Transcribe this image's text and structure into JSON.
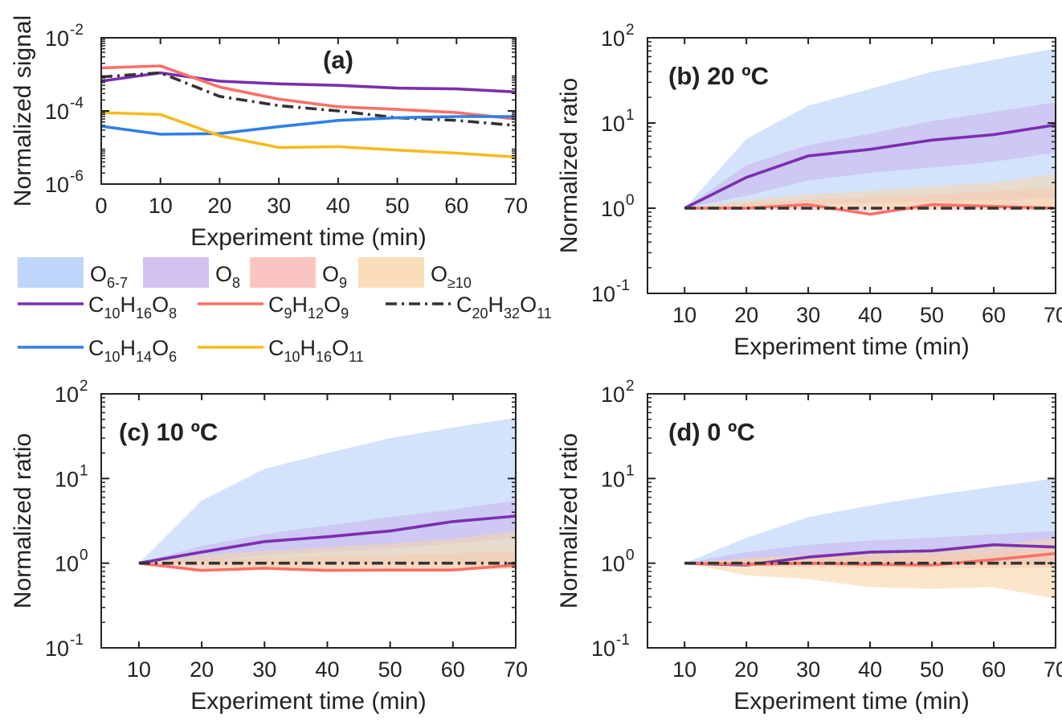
{
  "chart_data": [
    {
      "panel_id": "a",
      "type": "line",
      "title": "(a)",
      "xlabel": "Experiment time (min)",
      "ylabel": "Normalized signal",
      "xscale": "linear",
      "yscale": "log",
      "xlim": [
        0,
        70
      ],
      "ylim_exp": [
        -6,
        -2
      ],
      "xticks": [
        "0",
        "10",
        "20",
        "30",
        "40",
        "50",
        "60",
        "70"
      ],
      "yticks": [
        {
          "base": "10",
          "exp": "-6",
          "value_exp": -6
        },
        {
          "base": "10",
          "exp": "-4",
          "value_exp": -4
        },
        {
          "base": "10",
          "exp": "-2",
          "value_exp": -2
        }
      ],
      "x": [
        0,
        10,
        20,
        30,
        40,
        50,
        60,
        70
      ],
      "series": [
        {
          "name": "C10H16O8",
          "color": "#7b2fae",
          "style": "solid",
          "values": [
            0.00065,
            0.0011,
            0.00065,
            0.00055,
            0.0005,
            0.00042,
            0.0004,
            0.00033
          ]
        },
        {
          "name": "C9H12O9",
          "color": "#f87168",
          "style": "solid",
          "values": [
            0.0015,
            0.0017,
            0.00045,
            0.00021,
            0.00013,
            0.00011,
            9e-05,
            6e-05
          ]
        },
        {
          "name": "C20H32O11",
          "color": "#333333",
          "style": "dashdot",
          "values": [
            0.00085,
            0.0011,
            0.00025,
            0.00014,
            0.0001,
            6.5e-05,
            5.5e-05,
            4e-05
          ]
        },
        {
          "name": "C10H14O6",
          "color": "#2f7fe8",
          "style": "solid",
          "values": [
            3.8e-05,
            2.3e-05,
            2.4e-05,
            3.7e-05,
            5.5e-05,
            6.5e-05,
            7e-05,
            7e-05
          ]
        },
        {
          "name": "C10H16O11",
          "color": "#f6bb21",
          "style": "solid",
          "values": [
            9e-05,
            8e-05,
            2.1e-05,
            1e-05,
            1.05e-05,
            8.5e-06,
            7e-06,
            5.5e-06
          ]
        }
      ]
    },
    {
      "panel_id": "b",
      "type": "line",
      "title": "(b) 20 ºC",
      "xlabel": "Experiment time (min)",
      "ylabel": "Normalized ratio",
      "xscale": "linear",
      "yscale": "log",
      "xlim": [
        4,
        70
      ],
      "ylim_exp": [
        -1,
        2
      ],
      "xticks": [
        "10",
        "20",
        "30",
        "40",
        "50",
        "60",
        "70"
      ],
      "yticks": [
        {
          "base": "10",
          "exp": "-1",
          "value_exp": -1
        },
        {
          "base": "10",
          "exp": "0",
          "value_exp": 0
        },
        {
          "base": "10",
          "exp": "1",
          "value_exp": 1
        },
        {
          "base": "10",
          "exp": "2",
          "value_exp": 2
        }
      ],
      "x": [
        10,
        20,
        30,
        40,
        50,
        60,
        70
      ],
      "bands": [
        {
          "name": "O6-7",
          "color": "#aeccf8",
          "opacity": 0.55,
          "upper": [
            1,
            6.5,
            16,
            25,
            40,
            55,
            75
          ],
          "lower": [
            1,
            1.05,
            1.1,
            1.15,
            1.2,
            1.25,
            1.3
          ]
        },
        {
          "name": "O8",
          "color": "#c9b3ee",
          "opacity": 0.55,
          "upper": [
            1,
            3.2,
            5.5,
            7.5,
            10.5,
            13.5,
            17.5
          ],
          "lower": [
            1,
            1.4,
            2.1,
            2.6,
            3.0,
            3.5,
            4.5
          ]
        },
        {
          "name": "O9",
          "color": "#f9b7b2",
          "opacity": 0.5,
          "upper": [
            1,
            1.15,
            1.25,
            1.35,
            1.45,
            1.6,
            1.75
          ],
          "lower": [
            1,
            0.96,
            0.95,
            0.92,
            0.95,
            0.95,
            0.95
          ]
        },
        {
          "name": "O≥10",
          "color": "#f8d6a8",
          "opacity": 0.55,
          "upper": [
            1,
            1.25,
            1.45,
            1.6,
            1.8,
            2.0,
            2.5
          ],
          "lower": [
            1,
            1.0,
            1.0,
            1.0,
            1.0,
            1.0,
            1.0
          ]
        }
      ],
      "series": [
        {
          "name": "C10H16O8",
          "color": "#7b2fae",
          "style": "solid",
          "values": [
            1,
            2.3,
            4.1,
            4.9,
            6.3,
            7.3,
            9.5
          ]
        },
        {
          "name": "C9H12O9",
          "color": "#f87168",
          "style": "solid",
          "values": [
            1,
            1.0,
            1.1,
            0.85,
            1.1,
            1.05,
            1.0
          ]
        },
        {
          "name": "C20H32O11",
          "color": "#333333",
          "style": "dashdot",
          "values": [
            1,
            1,
            1,
            1,
            1,
            1,
            1
          ]
        }
      ]
    },
    {
      "panel_id": "c",
      "type": "line",
      "title": "(c) 10 ºC",
      "xlabel": "Experiment time (min)",
      "ylabel": "Normalized ratio",
      "xscale": "linear",
      "yscale": "log",
      "xlim": [
        4,
        70
      ],
      "ylim_exp": [
        -1,
        2
      ],
      "xticks": [
        "10",
        "20",
        "30",
        "40",
        "50",
        "60",
        "70"
      ],
      "yticks": [
        {
          "base": "10",
          "exp": "-1",
          "value_exp": -1
        },
        {
          "base": "10",
          "exp": "0",
          "value_exp": 0
        },
        {
          "base": "10",
          "exp": "1",
          "value_exp": 1
        },
        {
          "base": "10",
          "exp": "2",
          "value_exp": 2
        }
      ],
      "x": [
        10,
        20,
        30,
        40,
        50,
        60,
        70
      ],
      "bands": [
        {
          "name": "O6-7",
          "color": "#aeccf8",
          "opacity": 0.55,
          "upper": [
            1,
            5.5,
            13,
            20,
            30,
            40,
            52
          ],
          "lower": [
            1,
            1.0,
            1.0,
            1.0,
            1.0,
            1.0,
            1.0
          ]
        },
        {
          "name": "O8",
          "color": "#c9b3ee",
          "opacity": 0.55,
          "upper": [
            1,
            1.6,
            2.2,
            2.8,
            3.5,
            4.3,
            5.5
          ],
          "lower": [
            1,
            1.05,
            1.25,
            1.35,
            1.5,
            1.7,
            2.0
          ]
        },
        {
          "name": "O9",
          "color": "#f9b7b2",
          "opacity": 0.5,
          "upper": [
            1,
            1.1,
            1.15,
            1.2,
            1.25,
            1.3,
            1.4
          ],
          "lower": [
            1,
            0.82,
            0.85,
            0.82,
            0.82,
            0.82,
            0.88
          ]
        },
        {
          "name": "O≥10",
          "color": "#f8d6a8",
          "opacity": 0.55,
          "upper": [
            1,
            1.25,
            1.4,
            1.55,
            1.7,
            1.95,
            2.4
          ],
          "lower": [
            1,
            0.9,
            0.88,
            0.85,
            0.85,
            0.85,
            0.85
          ]
        }
      ],
      "series": [
        {
          "name": "C10H16O8",
          "color": "#7b2fae",
          "style": "solid",
          "values": [
            1,
            1.35,
            1.8,
            2.05,
            2.4,
            3.1,
            3.6
          ]
        },
        {
          "name": "C9H12O9",
          "color": "#f87168",
          "style": "solid",
          "values": [
            1,
            0.82,
            0.87,
            0.82,
            0.83,
            0.83,
            0.95
          ]
        },
        {
          "name": "C20H32O11",
          "color": "#333333",
          "style": "dashdot",
          "values": [
            1,
            1,
            1,
            1,
            1,
            1,
            1
          ]
        }
      ]
    },
    {
      "panel_id": "d",
      "type": "line",
      "title": "(d) 0 ºC",
      "xlabel": "Experiment time (min)",
      "ylabel": "Normalized ratio",
      "xscale": "linear",
      "yscale": "log",
      "xlim": [
        4,
        70
      ],
      "ylim_exp": [
        -1,
        2
      ],
      "xticks": [
        "10",
        "20",
        "30",
        "40",
        "50",
        "60",
        "70"
      ],
      "yticks": [
        {
          "base": "10",
          "exp": "-1",
          "value_exp": -1
        },
        {
          "base": "10",
          "exp": "0",
          "value_exp": 0
        },
        {
          "base": "10",
          "exp": "1",
          "value_exp": 1
        },
        {
          "base": "10",
          "exp": "2",
          "value_exp": 2
        }
      ],
      "x": [
        10,
        20,
        30,
        40,
        50,
        60,
        70
      ],
      "bands": [
        {
          "name": "O6-7",
          "color": "#aeccf8",
          "opacity": 0.55,
          "upper": [
            1,
            2.0,
            3.5,
            4.8,
            6.3,
            8.0,
            10.0
          ],
          "lower": [
            1,
            1.0,
            1.0,
            1.0,
            1.0,
            1.0,
            1.0
          ]
        },
        {
          "name": "O8",
          "color": "#c9b3ee",
          "opacity": 0.55,
          "upper": [
            1,
            1.35,
            1.65,
            1.85,
            2.0,
            2.2,
            2.4
          ],
          "lower": [
            1,
            0.95,
            0.95,
            0.95,
            0.95,
            0.95,
            0.95
          ]
        },
        {
          "name": "O9",
          "color": "#f9b7b2",
          "opacity": 0.5,
          "upper": [
            1,
            1.1,
            1.15,
            1.2,
            1.25,
            1.3,
            1.45
          ],
          "lower": [
            1,
            0.92,
            0.9,
            0.88,
            0.88,
            0.88,
            0.88
          ]
        },
        {
          "name": "O≥10",
          "color": "#f8d6a8",
          "opacity": 0.6,
          "upper": [
            1,
            1.15,
            1.25,
            1.35,
            1.45,
            1.6,
            2.0
          ],
          "lower": [
            1,
            0.72,
            0.65,
            0.52,
            0.5,
            0.52,
            0.38
          ]
        }
      ],
      "series": [
        {
          "name": "C10H16O8",
          "color": "#7b2fae",
          "style": "solid",
          "values": [
            1,
            0.95,
            1.18,
            1.35,
            1.4,
            1.65,
            1.55
          ]
        },
        {
          "name": "C9H12O9",
          "color": "#f87168",
          "style": "solid",
          "values": [
            1,
            0.97,
            1.0,
            0.97,
            0.95,
            1.1,
            1.3
          ]
        },
        {
          "name": "C20H32O11",
          "color": "#333333",
          "style": "dashdot",
          "values": [
            1,
            1,
            1,
            1,
            1,
            1,
            1
          ]
        }
      ]
    }
  ],
  "legend": {
    "bands": [
      {
        "main": "O",
        "sub": "6-7",
        "color": "#aeccf8"
      },
      {
        "main": "O",
        "sub": "8",
        "color": "#c9b3ee"
      },
      {
        "main": "O",
        "sub": "9",
        "color": "#f9b7b2"
      },
      {
        "main": "O",
        "sub": "≥10",
        "color": "#f8d6a8"
      }
    ],
    "lines": [
      {
        "parts": [
          {
            "t": "C",
            "s": "10"
          },
          {
            "t": "H",
            "s": "16"
          },
          {
            "t": "O",
            "s": "8"
          }
        ],
        "color": "#7b2fae",
        "style": "solid"
      },
      {
        "parts": [
          {
            "t": "C",
            "s": "9"
          },
          {
            "t": "H",
            "s": "12"
          },
          {
            "t": "O",
            "s": "9"
          }
        ],
        "color": "#f87168",
        "style": "solid"
      },
      {
        "parts": [
          {
            "t": "C",
            "s": "20"
          },
          {
            "t": "H",
            "s": "32"
          },
          {
            "t": "O",
            "s": "11"
          }
        ],
        "color": "#333333",
        "style": "dashdot"
      },
      {
        "parts": [
          {
            "t": "C",
            "s": "10"
          },
          {
            "t": "H",
            "s": "14"
          },
          {
            "t": "O",
            "s": "6"
          }
        ],
        "color": "#2f7fe8",
        "style": "solid"
      },
      {
        "parts": [
          {
            "t": "C",
            "s": "10"
          },
          {
            "t": "H",
            "s": "16"
          },
          {
            "t": "O",
            "s": "11"
          }
        ],
        "color": "#f6bb21",
        "style": "solid"
      }
    ]
  }
}
